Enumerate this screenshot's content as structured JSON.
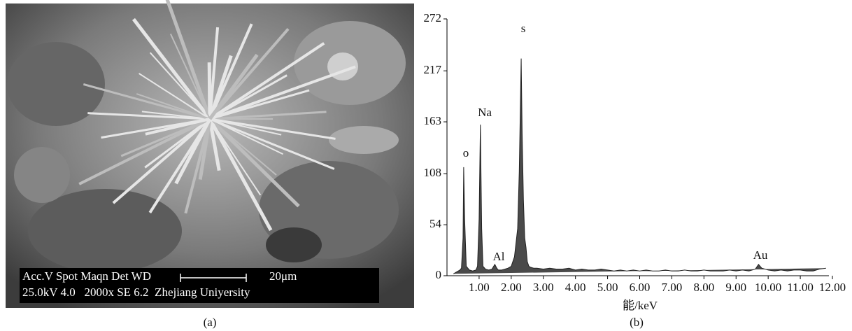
{
  "figure": {
    "image_overlay": {
      "line1": "Acc.V Spot Maqn Det WD",
      "scale": "20μm",
      "line2": "25.0kV 4.0   2000x SE 6.2  Zhejiang Uniyersity"
    },
    "captions": [
      "(a)",
      "(b)"
    ]
  },
  "chart_data": {
    "type": "line",
    "xlabel": "能/keV",
    "x": [
      0.2,
      0.3,
      0.4,
      0.45,
      0.5,
      0.52,
      0.55,
      0.6,
      0.7,
      0.8,
      0.9,
      0.95,
      1.0,
      1.04,
      1.08,
      1.12,
      1.2,
      1.3,
      1.4,
      1.49,
      1.55,
      1.6,
      1.7,
      1.8,
      1.9,
      2.0,
      2.1,
      2.15,
      2.2,
      2.25,
      2.28,
      2.31,
      2.34,
      2.38,
      2.42,
      2.46,
      2.5,
      2.55,
      2.6,
      2.7,
      2.8,
      3.0,
      3.2,
      3.4,
      3.6,
      3.8,
      4.0,
      4.2,
      4.4,
      4.6,
      4.8,
      5.0,
      5.2,
      5.4,
      5.6,
      5.8,
      6.0,
      6.2,
      6.4,
      6.6,
      6.8,
      7.0,
      7.2,
      7.4,
      7.6,
      7.8,
      8.0,
      8.2,
      8.4,
      8.6,
      8.8,
      9.0,
      9.2,
      9.4,
      9.6,
      9.7,
      9.8,
      10.0,
      10.2,
      10.4,
      10.6,
      10.8,
      11.0,
      11.2,
      11.4,
      11.6,
      11.8
    ],
    "values": [
      2,
      4,
      6,
      8,
      40,
      115,
      60,
      10,
      6,
      5,
      6,
      10,
      60,
      160,
      50,
      10,
      7,
      6,
      7,
      12,
      8,
      6,
      6,
      7,
      8,
      10,
      20,
      35,
      50,
      110,
      170,
      230,
      150,
      80,
      40,
      30,
      15,
      10,
      9,
      8,
      8,
      7,
      8,
      7,
      7,
      8,
      6,
      7,
      6,
      6,
      7,
      6,
      5,
      6,
      5,
      6,
      5,
      6,
      5,
      5,
      6,
      5,
      5,
      6,
      5,
      5,
      6,
      5,
      5,
      5,
      6,
      5,
      6,
      5,
      7,
      12,
      8,
      6,
      5,
      6,
      5,
      6,
      6,
      5,
      5,
      7,
      8
    ],
    "color": "#4a4a4a",
    "annotations": [
      "o",
      "Na",
      "Al",
      "s",
      "Au"
    ],
    "xlim": [
      0,
      12
    ],
    "ylim": [
      0,
      272
    ],
    "xticks": [
      {
        "value": 1,
        "label": "1.00"
      },
      {
        "value": 2,
        "label": "2.00"
      },
      {
        "value": 3,
        "label": "3.00"
      },
      {
        "value": 4,
        "label": "4.00"
      },
      {
        "value": 5,
        "label": "5.00"
      },
      {
        "value": 6,
        "label": "6.00"
      },
      {
        "value": 7,
        "label": "7.00"
      },
      {
        "value": 8,
        "label": "8.00"
      },
      {
        "value": 9,
        "label": "9.00"
      },
      {
        "value": 10,
        "label": "10.00"
      },
      {
        "value": 11,
        "label": "11.00"
      },
      {
        "value": 12,
        "label": "12.00"
      }
    ],
    "yticks": [
      0,
      54,
      108,
      163,
      217,
      272
    ]
  }
}
